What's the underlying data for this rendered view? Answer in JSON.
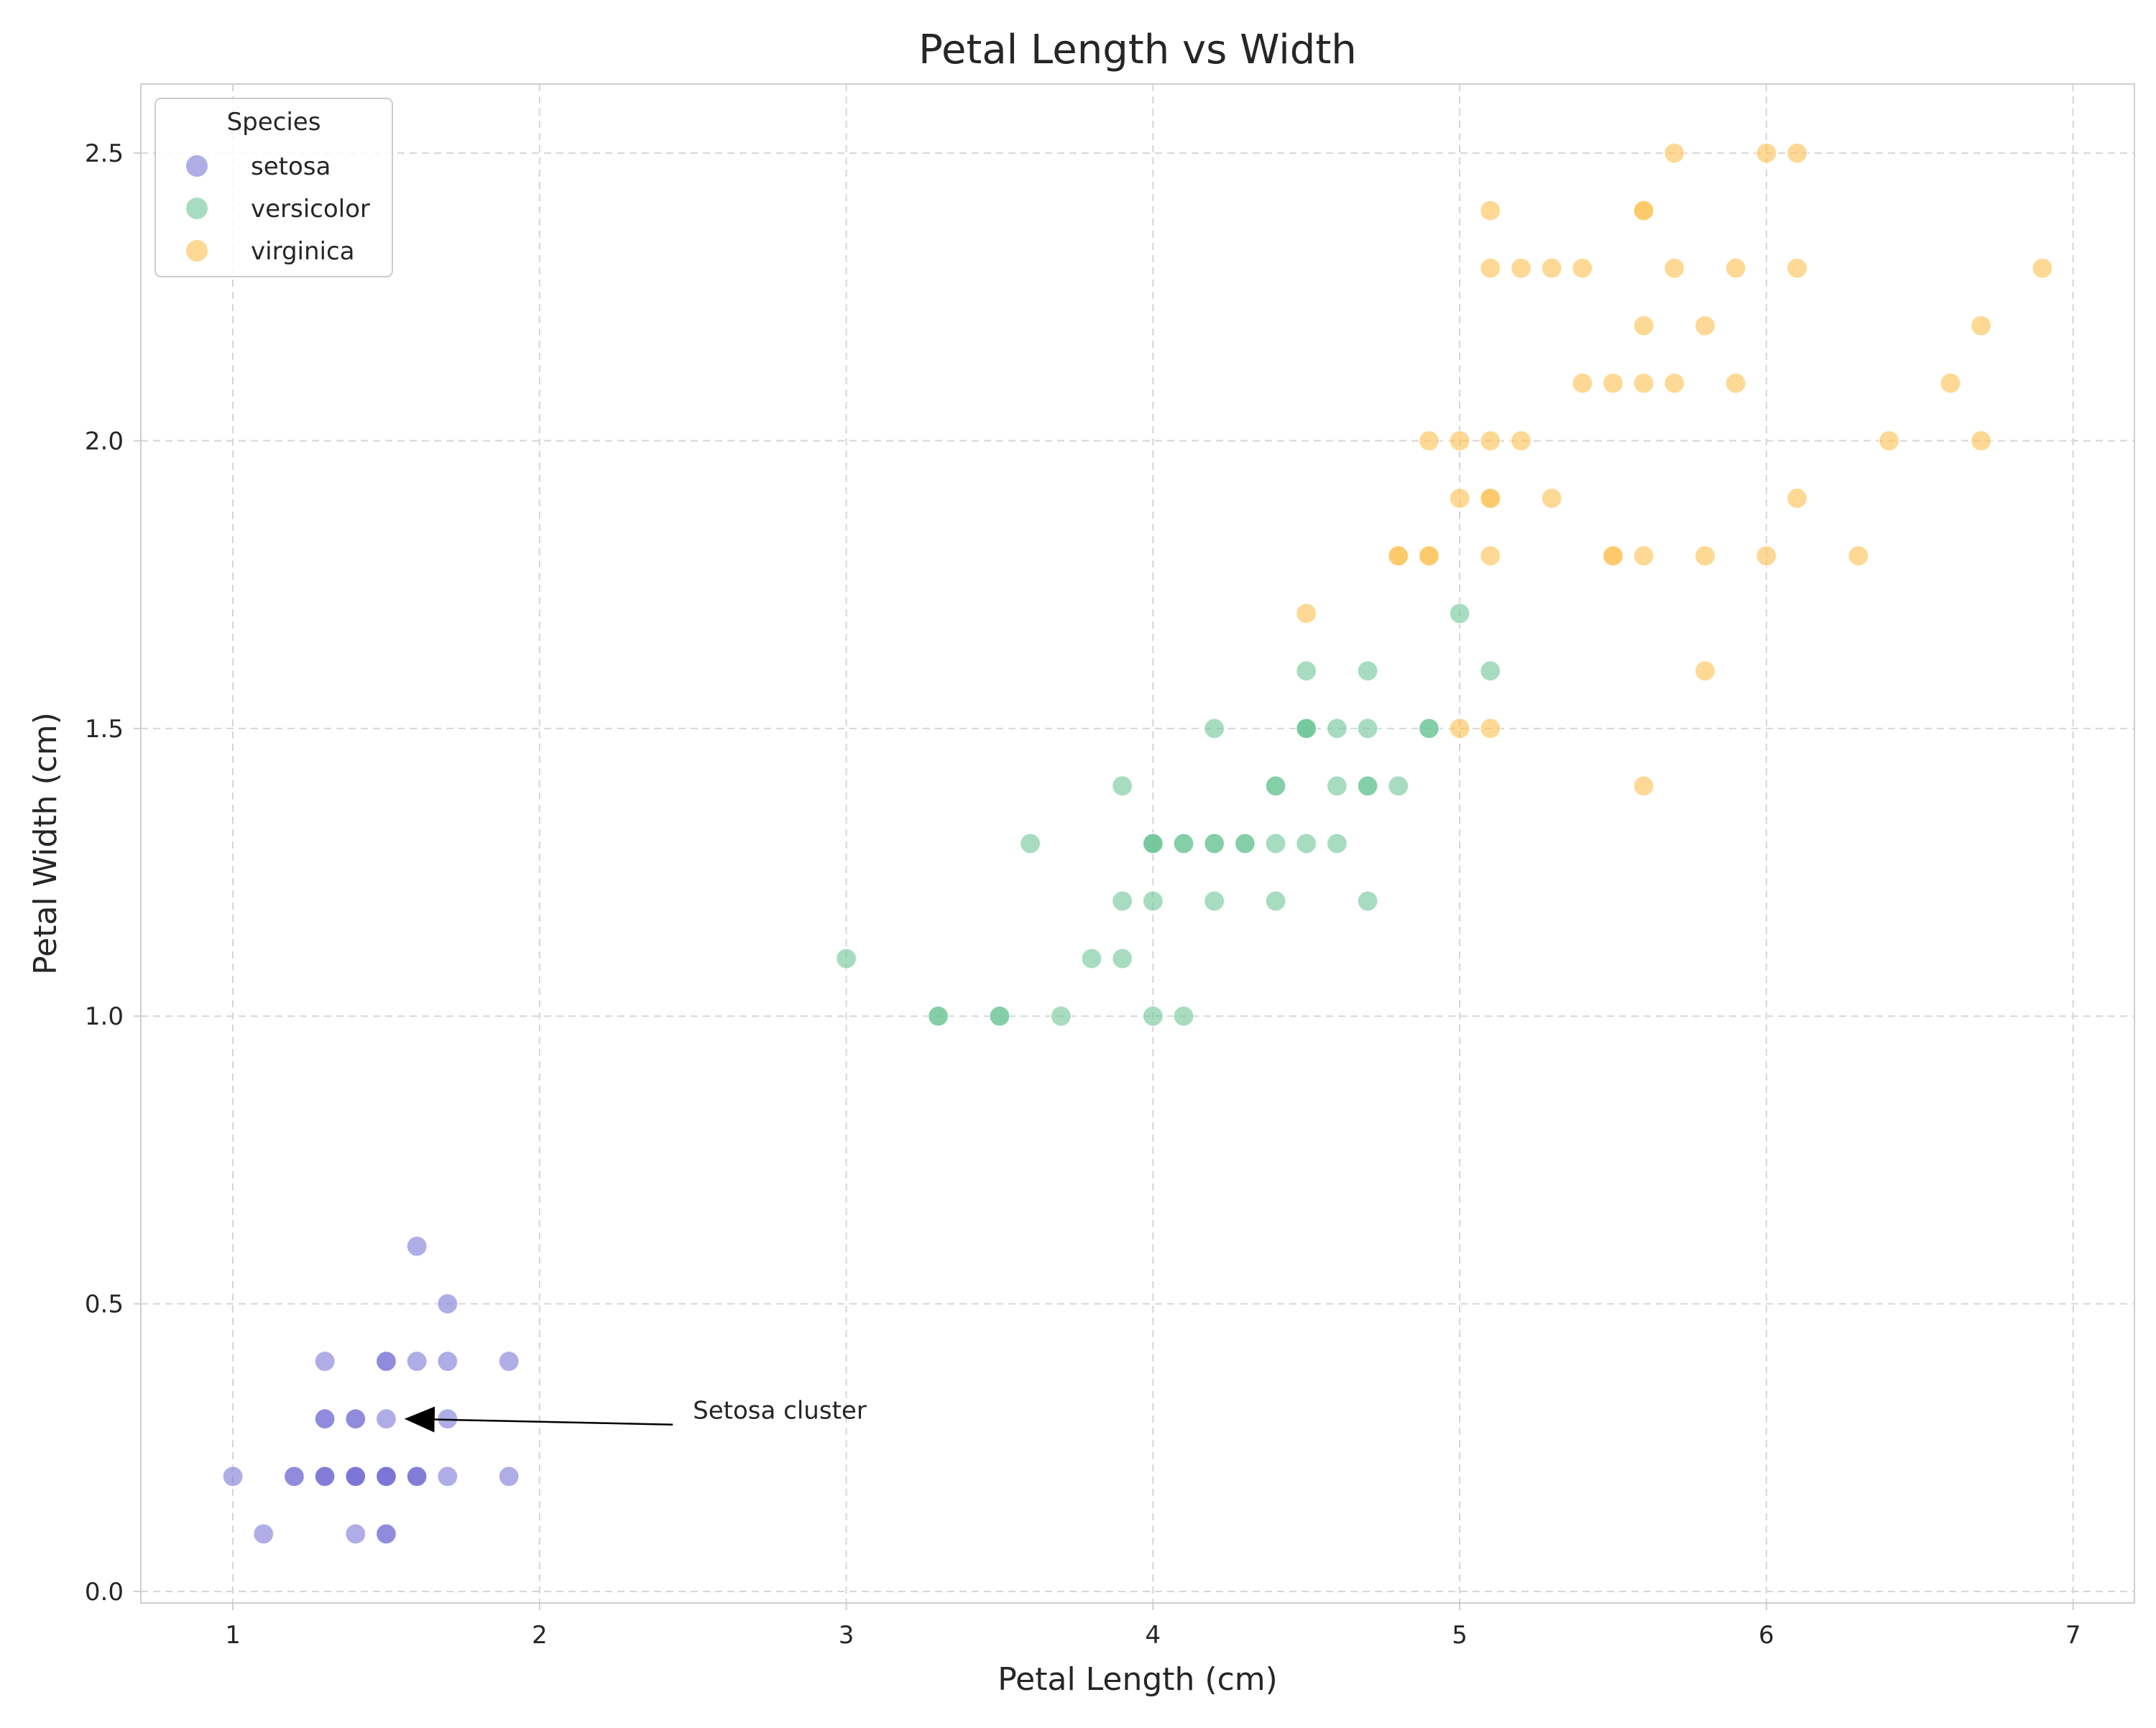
{
  "chart_data": {
    "type": "scatter",
    "title": "Petal Length vs Width",
    "xlabel": "Petal Length (cm)",
    "ylabel": "Petal Width (cm)",
    "xlim": [
      0.7,
      7.2
    ],
    "ylim": [
      -0.02,
      2.62
    ],
    "xticks": [
      1,
      2,
      3,
      4,
      5,
      6,
      7
    ],
    "xtick_labels": [
      "1",
      "2",
      "3",
      "4",
      "5",
      "6",
      "7"
    ],
    "yticks": [
      0.0,
      0.5,
      1.0,
      1.5,
      2.0,
      2.5
    ],
    "ytick_labels": [
      "0.0",
      "0.5",
      "1.0",
      "1.5",
      "2.0",
      "2.5"
    ],
    "grid": true,
    "grid_style": "dashed",
    "legend": {
      "title": "Species",
      "position": "top-left"
    },
    "series": [
      {
        "name": "setosa",
        "color": "#7b74d6",
        "points": [
          [
            1.0,
            0.2
          ],
          [
            1.1,
            0.1
          ],
          [
            1.2,
            0.2
          ],
          [
            1.2,
            0.2
          ],
          [
            1.3,
            0.2
          ],
          [
            1.3,
            0.2
          ],
          [
            1.3,
            0.2
          ],
          [
            1.3,
            0.3
          ],
          [
            1.3,
            0.3
          ],
          [
            1.3,
            0.4
          ],
          [
            1.4,
            0.1
          ],
          [
            1.4,
            0.2
          ],
          [
            1.4,
            0.2
          ],
          [
            1.4,
            0.2
          ],
          [
            1.4,
            0.2
          ],
          [
            1.4,
            0.2
          ],
          [
            1.4,
            0.3
          ],
          [
            1.4,
            0.3
          ],
          [
            1.5,
            0.1
          ],
          [
            1.5,
            0.1
          ],
          [
            1.5,
            0.2
          ],
          [
            1.5,
            0.2
          ],
          [
            1.5,
            0.2
          ],
          [
            1.5,
            0.2
          ],
          [
            1.5,
            0.2
          ],
          [
            1.5,
            0.3
          ],
          [
            1.5,
            0.4
          ],
          [
            1.5,
            0.4
          ],
          [
            1.6,
            0.2
          ],
          [
            1.6,
            0.2
          ],
          [
            1.6,
            0.2
          ],
          [
            1.6,
            0.4
          ],
          [
            1.6,
            0.6
          ],
          [
            1.7,
            0.2
          ],
          [
            1.7,
            0.3
          ],
          [
            1.7,
            0.4
          ],
          [
            1.7,
            0.5
          ],
          [
            1.9,
            0.2
          ],
          [
            1.9,
            0.4
          ]
        ]
      },
      {
        "name": "versicolor",
        "color": "#6cc497",
        "points": [
          [
            3.0,
            1.1
          ],
          [
            3.3,
            1.0
          ],
          [
            3.3,
            1.0
          ],
          [
            3.5,
            1.0
          ],
          [
            3.5,
            1.0
          ],
          [
            3.6,
            1.3
          ],
          [
            3.7,
            1.0
          ],
          [
            3.8,
            1.1
          ],
          [
            3.9,
            1.1
          ],
          [
            3.9,
            1.2
          ],
          [
            3.9,
            1.4
          ],
          [
            4.0,
            1.0
          ],
          [
            4.0,
            1.2
          ],
          [
            4.0,
            1.3
          ],
          [
            4.0,
            1.3
          ],
          [
            4.0,
            1.3
          ],
          [
            4.1,
            1.0
          ],
          [
            4.1,
            1.3
          ],
          [
            4.1,
            1.3
          ],
          [
            4.2,
            1.2
          ],
          [
            4.2,
            1.3
          ],
          [
            4.2,
            1.3
          ],
          [
            4.2,
            1.5
          ],
          [
            4.3,
            1.3
          ],
          [
            4.3,
            1.3
          ],
          [
            4.4,
            1.2
          ],
          [
            4.4,
            1.3
          ],
          [
            4.4,
            1.4
          ],
          [
            4.4,
            1.4
          ],
          [
            4.5,
            1.3
          ],
          [
            4.5,
            1.5
          ],
          [
            4.5,
            1.5
          ],
          [
            4.5,
            1.5
          ],
          [
            4.5,
            1.6
          ],
          [
            4.6,
            1.3
          ],
          [
            4.6,
            1.4
          ],
          [
            4.6,
            1.5
          ],
          [
            4.7,
            1.2
          ],
          [
            4.7,
            1.4
          ],
          [
            4.7,
            1.4
          ],
          [
            4.7,
            1.5
          ],
          [
            4.7,
            1.6
          ],
          [
            4.8,
            1.4
          ],
          [
            4.9,
            1.5
          ],
          [
            4.9,
            1.5
          ],
          [
            5.0,
            1.7
          ],
          [
            5.1,
            1.6
          ]
        ]
      },
      {
        "name": "virginica",
        "color": "#fbbf4f",
        "points": [
          [
            4.5,
            1.7
          ],
          [
            4.8,
            1.8
          ],
          [
            4.8,
            1.8
          ],
          [
            4.9,
            1.8
          ],
          [
            4.9,
            1.8
          ],
          [
            4.9,
            2.0
          ],
          [
            5.0,
            1.5
          ],
          [
            5.0,
            1.9
          ],
          [
            5.0,
            2.0
          ],
          [
            5.1,
            1.5
          ],
          [
            5.1,
            1.8
          ],
          [
            5.1,
            1.9
          ],
          [
            5.1,
            1.9
          ],
          [
            5.1,
            2.0
          ],
          [
            5.1,
            2.3
          ],
          [
            5.1,
            2.4
          ],
          [
            5.2,
            2.0
          ],
          [
            5.2,
            2.3
          ],
          [
            5.3,
            1.9
          ],
          [
            5.3,
            2.3
          ],
          [
            5.4,
            2.1
          ],
          [
            5.4,
            2.3
          ],
          [
            5.5,
            1.8
          ],
          [
            5.5,
            1.8
          ],
          [
            5.5,
            2.1
          ],
          [
            5.6,
            1.4
          ],
          [
            5.6,
            1.8
          ],
          [
            5.6,
            2.1
          ],
          [
            5.6,
            2.2
          ],
          [
            5.6,
            2.4
          ],
          [
            5.6,
            2.4
          ],
          [
            5.7,
            2.1
          ],
          [
            5.7,
            2.3
          ],
          [
            5.7,
            2.5
          ],
          [
            5.8,
            1.6
          ],
          [
            5.8,
            1.8
          ],
          [
            5.8,
            2.2
          ],
          [
            5.9,
            2.1
          ],
          [
            5.9,
            2.3
          ],
          [
            6.0,
            1.8
          ],
          [
            6.0,
            2.5
          ],
          [
            6.1,
            1.9
          ],
          [
            6.1,
            2.3
          ],
          [
            6.1,
            2.5
          ],
          [
            6.3,
            1.8
          ],
          [
            6.4,
            2.0
          ],
          [
            6.6,
            2.1
          ],
          [
            6.7,
            2.0
          ],
          [
            6.7,
            2.2
          ],
          [
            6.9,
            2.3
          ]
        ]
      }
    ],
    "annotations": [
      {
        "text": "Setosa cluster",
        "xy": [
          1.55,
          0.3
        ],
        "xytext": [
          2.5,
          0.3
        ]
      }
    ]
  }
}
